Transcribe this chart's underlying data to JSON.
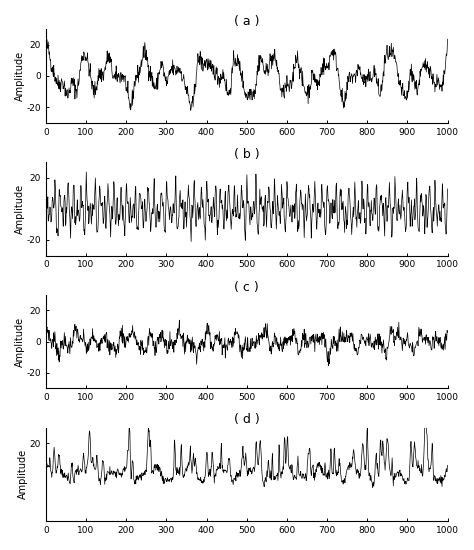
{
  "title_a": "( a )",
  "title_b": "( b )",
  "title_c": "( c )",
  "title_d": "( d )",
  "ylabel": "Amplitude",
  "xlim": [
    0,
    1000
  ],
  "xticks": [
    0,
    100,
    200,
    300,
    400,
    500,
    600,
    700,
    800,
    900,
    1000
  ],
  "ylim": [
    -30,
    30
  ],
  "yticks_abc": [
    -20,
    0,
    20
  ],
  "yticks_b": [
    -20,
    20
  ],
  "yticks_d": [
    20
  ],
  "n_points": 1024,
  "linewidth": 0.5,
  "bg_color": "#ffffff",
  "line_color": "#000000",
  "title_fontsize": 9,
  "label_fontsize": 7,
  "tick_fontsize": 6.5
}
